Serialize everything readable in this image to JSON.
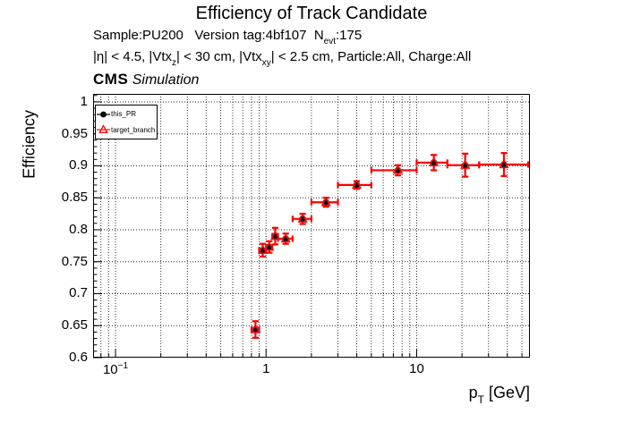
{
  "header": {
    "title": "Efficiency of Track Candidate",
    "info_line1": {
      "pre": "Sample:PU200   Version tag:4bf107  N",
      "sub": "evt",
      "post": ":175"
    },
    "info_line2": {
      "p1": "|η| < 4.5, |Vtx",
      "sub1": "z",
      "p2": "| < 30 cm, |Vtx",
      "sub2": "xy",
      "p3": "| < 2.5 cm, Particle:All, Charge:All"
    },
    "experiment": "CMS",
    "experiment_label": " Simulation"
  },
  "axes": {
    "y_title": "Efficiency",
    "x_title": {
      "pre": "p",
      "sub": "T",
      "post": " [GeV]"
    }
  },
  "legend": {
    "entries": [
      {
        "label": "this_PR",
        "marker": "filled-circle",
        "color": "#000000"
      },
      {
        "label": "target_branch",
        "marker": "open-triangle",
        "color": "#ff0000"
      }
    ]
  },
  "chart_data": {
    "type": "scatter",
    "title": "Efficiency of Track Candidate",
    "xlabel": "p_T [GeV]",
    "ylabel": "Efficiency",
    "xscale": "log",
    "grid": true,
    "xlim": [
      0.071,
      56.5
    ],
    "ylim": [
      0.6,
      1.0125
    ],
    "y_ticks": [
      0.6,
      0.65,
      0.7,
      0.75,
      0.8,
      0.85,
      0.9,
      0.95,
      1
    ],
    "y_tick_labels": [
      "0.6",
      "0.65",
      "0.7",
      "0.75",
      "0.8",
      "0.85",
      "0.9",
      "0.95",
      "1"
    ],
    "y_minor_step": 0.01,
    "x_major_ticks": [
      0.1,
      1,
      10
    ],
    "x_tick_labels": [
      {
        "base": "10",
        "exp": "−1",
        "value": 0.1
      },
      {
        "base": "1",
        "exp": "",
        "value": 1
      },
      {
        "base": "10",
        "exp": "",
        "value": 10
      }
    ],
    "series": [
      {
        "name": "this_PR",
        "marker": "filled-circle",
        "color": "#000000",
        "x": [
          0.85,
          0.95,
          1.05,
          1.15,
          1.35,
          1.75,
          2.5,
          4.0,
          7.5,
          13,
          21,
          38
        ],
        "y": [
          0.644,
          0.768,
          0.773,
          0.79,
          0.786,
          0.817,
          0.843,
          0.87,
          0.893,
          0.905,
          0.901,
          0.902
        ],
        "xlo": [
          0.8,
          0.9,
          1.0,
          1.1,
          1.2,
          1.5,
          2.0,
          3.0,
          5.0,
          10,
          16,
          26
        ],
        "xhi": [
          0.9,
          1.0,
          1.1,
          1.2,
          1.5,
          2.0,
          3.0,
          5.0,
          10,
          16,
          26,
          55
        ],
        "yerr": [
          0.013,
          0.01,
          0.009,
          0.013,
          0.008,
          0.008,
          0.007,
          0.006,
          0.008,
          0.012,
          0.018,
          0.018
        ]
      },
      {
        "name": "target_branch",
        "marker": "open-triangle",
        "color": "#ff0000",
        "x": [
          0.85,
          0.95,
          1.05,
          1.15,
          1.35,
          1.75,
          2.5,
          4.0,
          7.5,
          13,
          21,
          38
        ],
        "y": [
          0.644,
          0.768,
          0.773,
          0.79,
          0.786,
          0.817,
          0.843,
          0.87,
          0.893,
          0.905,
          0.901,
          0.902
        ],
        "xlo": [
          0.8,
          0.9,
          1.0,
          1.1,
          1.2,
          1.5,
          2.0,
          3.0,
          5.0,
          10,
          16,
          26
        ],
        "xhi": [
          0.9,
          1.0,
          1.1,
          1.2,
          1.5,
          2.0,
          3.0,
          5.0,
          10,
          16,
          26,
          55
        ],
        "yerr": [
          0.013,
          0.01,
          0.009,
          0.013,
          0.008,
          0.008,
          0.007,
          0.006,
          0.008,
          0.012,
          0.018,
          0.018
        ]
      }
    ]
  }
}
